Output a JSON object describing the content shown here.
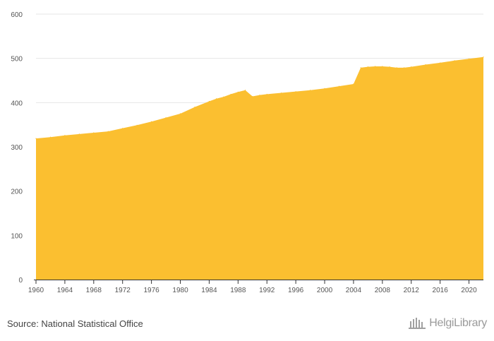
{
  "chart_data": {
    "type": "area",
    "title": "",
    "xlabel": "",
    "ylabel": "",
    "xlim": [
      1960,
      2022
    ],
    "ylim": [
      0,
      600
    ],
    "y_ticks": [
      0,
      100,
      200,
      300,
      400,
      500,
      600
    ],
    "x_ticks": [
      1960,
      1964,
      1968,
      1972,
      1976,
      1980,
      1984,
      1988,
      1992,
      1996,
      2000,
      2004,
      2008,
      2012,
      2016,
      2020
    ],
    "grid": true,
    "legend": "none",
    "series": [
      {
        "color": "#FBBF30",
        "x": [
          1960,
          1962,
          1964,
          1966,
          1968,
          1970,
          1972,
          1974,
          1976,
          1978,
          1980,
          1982,
          1984,
          1985,
          1986,
          1987,
          1988,
          1989,
          1990,
          1991,
          1992,
          1994,
          1996,
          1998,
          2000,
          2002,
          2004,
          2005,
          2006,
          2007,
          2008,
          2009,
          2010,
          2011,
          2012,
          2014,
          2016,
          2018,
          2020,
          2022
        ],
        "values": [
          319,
          322,
          326,
          329,
          332,
          335,
          342,
          349,
          357,
          366,
          375,
          390,
          403,
          409,
          413,
          419,
          424,
          428,
          414,
          417,
          419,
          422,
          425,
          428,
          432,
          437,
          442,
          479,
          481,
          482,
          482,
          481,
          479,
          479,
          481,
          486,
          490,
          495,
          499,
          503
        ]
      }
    ]
  },
  "footer": {
    "source": "Source: National Statistical Office",
    "brand": "HelgiLibrary"
  },
  "colors": {
    "area_fill": "#FBBF30",
    "grid": "#E6E6E6",
    "axis": "#333333",
    "text": "#555555"
  }
}
